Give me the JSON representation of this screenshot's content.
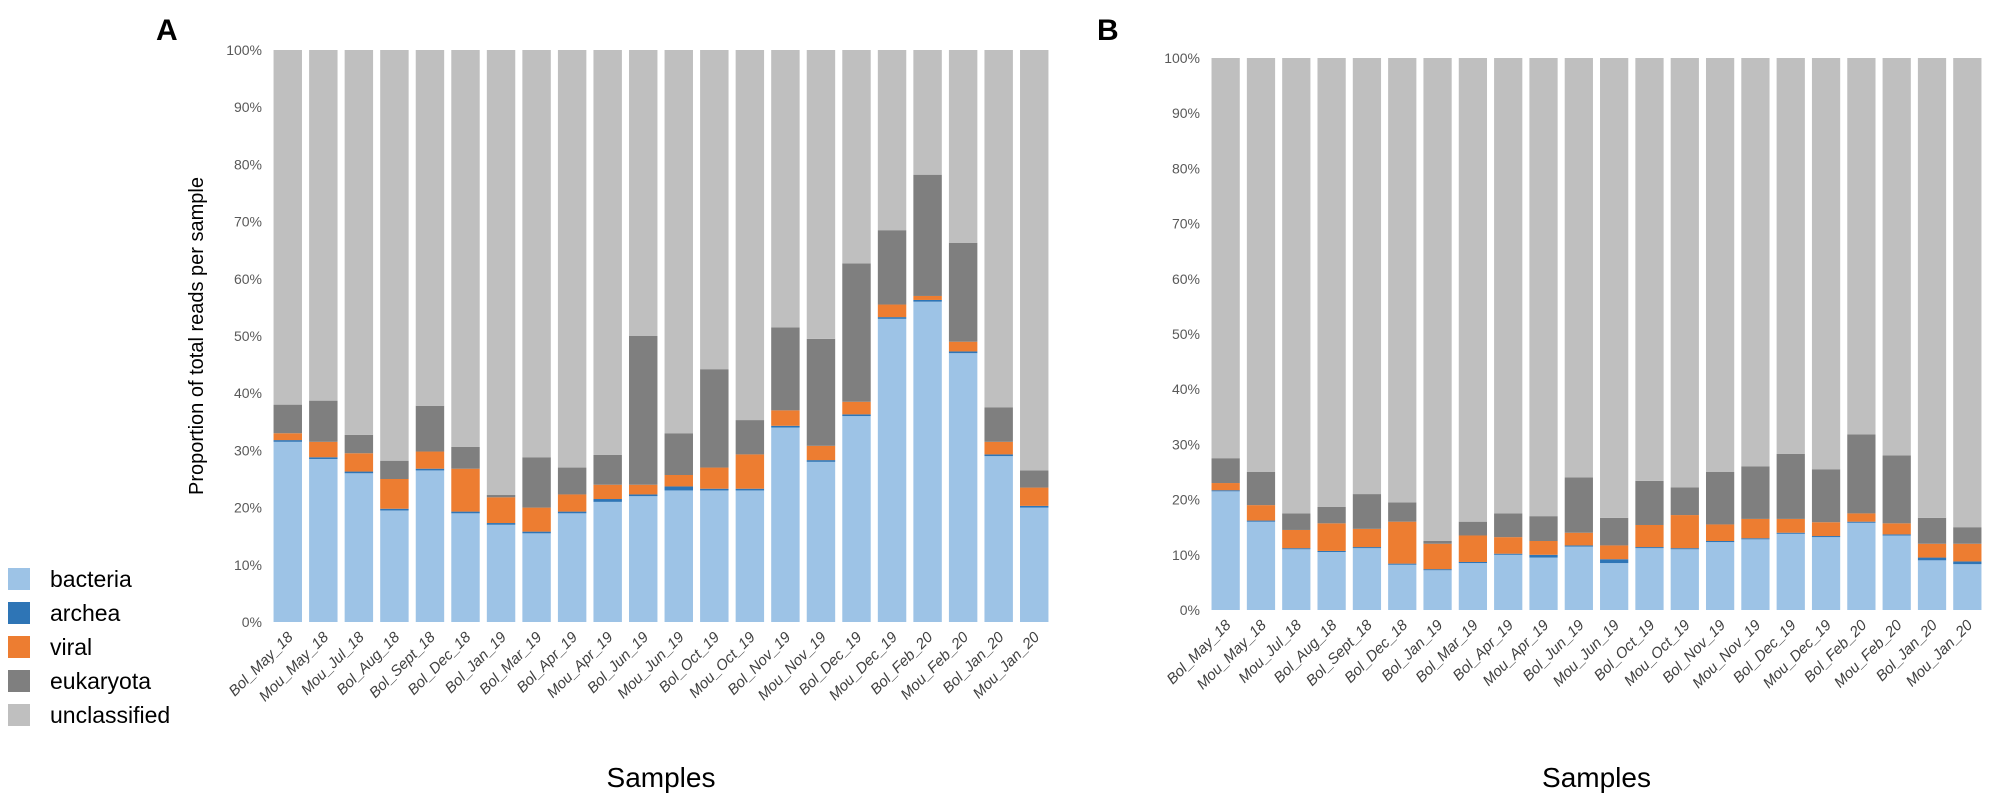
{
  "figure": {
    "panel_a_label": "A",
    "panel_b_label": "B"
  },
  "legend": {
    "items": [
      {
        "key": "bacteria",
        "label": "bacteria",
        "color": "#9DC3E6"
      },
      {
        "key": "archea",
        "label": "archea",
        "color": "#2E75B6"
      },
      {
        "key": "viral",
        "label": "viral",
        "color": "#ED7D31"
      },
      {
        "key": "eukaryota",
        "label": "eukaryota",
        "color": "#7F7F7F"
      },
      {
        "key": "unclassified",
        "label": "unclassified",
        "color": "#BFBFBF"
      }
    ]
  },
  "chart_data": [
    {
      "type": "bar",
      "stacked": true,
      "panel": "A",
      "title": "",
      "xlabel": "Samples",
      "ylabel": "Proportion of total reads per sample",
      "ylim": [
        0,
        100
      ],
      "yticks": [
        "0%",
        "10%",
        "20%",
        "30%",
        "40%",
        "50%",
        "60%",
        "70%",
        "80%",
        "90%",
        "100%"
      ],
      "categories": [
        "Bol_May_18",
        "Mou_May_18",
        "Mou_Jul_18",
        "Bol_Aug_18",
        "Bol_Sept_18",
        "Bol_Dec_18",
        "Bol_Jan_19",
        "Bol_Mar_19",
        "Bol_Apr_19",
        "Mou_Apr_19",
        "Bol_Jun_19",
        "Mou_Jun_19",
        "Bol_Oct_19",
        "Mou_Oct_19",
        "Bol_Nov_19",
        "Mou_Nov_19",
        "Bol_Dec_19",
        "Mou_Dec_19",
        "Bol_Feb_20",
        "Mou_Feb_20",
        "Bol_Jan_20",
        "Mou_Jan_20"
      ],
      "series": [
        {
          "name": "bacteria",
          "values": [
            31.5,
            28.5,
            26,
            19.5,
            26.5,
            19,
            17,
            15.5,
            19,
            21,
            22,
            23,
            23,
            23,
            34,
            28,
            36,
            53,
            56,
            47,
            29,
            20
          ]
        },
        {
          "name": "archea",
          "values": [
            0.3,
            0.3,
            0.3,
            0.3,
            0.3,
            0.3,
            0.3,
            0.3,
            0.3,
            0.5,
            0.3,
            0.7,
            0.3,
            0.3,
            0.3,
            0.3,
            0.3,
            0.3,
            0.3,
            0.3,
            0.3,
            0.3
          ]
        },
        {
          "name": "viral",
          "values": [
            1.2,
            2.7,
            3.2,
            5.2,
            3,
            7.5,
            4.5,
            4.2,
            3,
            2.5,
            1.7,
            2,
            3.7,
            6,
            2.7,
            2.5,
            2.2,
            2.2,
            0.7,
            1.7,
            2.2,
            3.2
          ]
        },
        {
          "name": "eukaryota",
          "values": [
            5,
            7.2,
            3.2,
            3.2,
            8,
            3.8,
            0.4,
            8.8,
            4.7,
            5.2,
            26,
            7.3,
            17.2,
            6,
            14.5,
            18.7,
            24.2,
            13,
            21.2,
            17.3,
            6,
            3
          ]
        },
        {
          "name": "unclassified",
          "values": [
            62,
            61.3,
            67.3,
            71.8,
            62.2,
            69.4,
            77.8,
            71.2,
            73,
            70.8,
            50,
            67,
            55.8,
            64.7,
            48.5,
            50.5,
            37.3,
            31.5,
            21.8,
            33.7,
            62.5,
            73.5
          ]
        }
      ]
    },
    {
      "type": "bar",
      "stacked": true,
      "panel": "B",
      "title": "",
      "xlabel": "Samples",
      "ylabel": "",
      "ylim": [
        0,
        100
      ],
      "yticks": [
        "0%",
        "10%",
        "20%",
        "30%",
        "40%",
        "50%",
        "60%",
        "70%",
        "80%",
        "90%",
        "100%"
      ],
      "categories": [
        "Bol_May_18",
        "Mou_May_18",
        "Mou_Jul_18",
        "Bol_Aug_18",
        "Bol_Sept_18",
        "Bol_Dec_18",
        "Bol_Jan_19",
        "Bol_Mar_19",
        "Bol_Apr_19",
        "Mou_Apr_19",
        "Bol_Jun_19",
        "Mou_Jun_19",
        "Bol_Oct_19",
        "Mou_Oct_19",
        "Bol_Nov_19",
        "Mou_Nov_19",
        "Bol_Dec_19",
        "Mou_Dec_19",
        "Bol_Feb_20",
        "Mou_Feb_20",
        "Bol_Jan_20",
        "Mou_Jan_20"
      ],
      "series": [
        {
          "name": "bacteria",
          "values": [
            21.5,
            16,
            11,
            10.5,
            11.2,
            8.2,
            7.2,
            8.5,
            10,
            9.5,
            11.5,
            8.5,
            11.2,
            11,
            12.3,
            12.8,
            13.8,
            13.2,
            15.8,
            13.5,
            9,
            8.3
          ]
        },
        {
          "name": "archea",
          "values": [
            0.2,
            0.2,
            0.2,
            0.2,
            0.2,
            0.2,
            0.2,
            0.2,
            0.2,
            0.5,
            0.2,
            0.7,
            0.2,
            0.2,
            0.2,
            0.2,
            0.2,
            0.2,
            0.2,
            0.2,
            0.5,
            0.5
          ]
        },
        {
          "name": "viral",
          "values": [
            1.3,
            2.8,
            3.3,
            5,
            3.3,
            7.6,
            4.6,
            4.8,
            3,
            2.5,
            2.3,
            2.5,
            4,
            6,
            3,
            3.5,
            2.5,
            2.5,
            1.5,
            2,
            2.5,
            3.2
          ]
        },
        {
          "name": "eukaryota",
          "values": [
            4.5,
            6,
            3,
            3,
            6.3,
            3.5,
            0.5,
            2.5,
            4.3,
            4.5,
            10,
            5,
            8,
            5,
            9.5,
            9.5,
            11.8,
            9.6,
            14.3,
            12.3,
            4.7,
            3
          ]
        },
        {
          "name": "unclassified",
          "values": [
            72.5,
            75,
            82.5,
            81.3,
            79,
            80.5,
            87.5,
            84,
            82.5,
            83,
            76,
            83.3,
            76.6,
            77.8,
            75,
            74,
            71.7,
            74.5,
            68.2,
            72,
            83.3,
            85
          ]
        }
      ]
    }
  ]
}
